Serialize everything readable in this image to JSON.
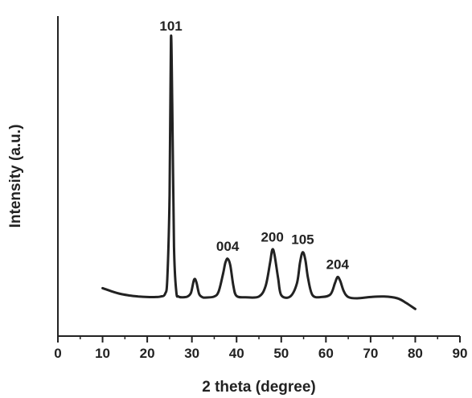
{
  "chart_data": {
    "type": "line",
    "title": "",
    "xlabel": "2 theta (degree)",
    "ylabel": "Intensity (a.u.)",
    "xlim": [
      0,
      90
    ],
    "ylim": [
      0,
      100
    ],
    "xticks": [
      0,
      10,
      20,
      30,
      40,
      50,
      60,
      70,
      80,
      90
    ],
    "grid": false,
    "legend": "none",
    "colors": {
      "line": "#222222",
      "axis": "#222222"
    },
    "series": [
      {
        "x": [
          10,
          12,
          14,
          16,
          18,
          20,
          22,
          23,
          24,
          24.5,
          25,
          25.3,
          25.6,
          26,
          26.5,
          27,
          28,
          29,
          29.8,
          30.5,
          31,
          31.6,
          32.3,
          33,
          35,
          36,
          37,
          37.5,
          38,
          38.6,
          39.3,
          40,
          42,
          45,
          46.5,
          47.5,
          48,
          48.5,
          49.3,
          50,
          52,
          53.5,
          54.2,
          54.8,
          55.4,
          56,
          57,
          59,
          61,
          62,
          62.6,
          63.2,
          64,
          65,
          67,
          70,
          73,
          76,
          78,
          80
        ],
        "y": [
          4.2,
          3.0,
          2.0,
          1.4,
          1.0,
          0.8,
          0.8,
          1.0,
          2.0,
          8.0,
          40.0,
          100.0,
          75.0,
          20.0,
          3.0,
          1.0,
          0.7,
          1.0,
          2.5,
          7.5,
          6.5,
          2.0,
          0.8,
          0.6,
          1.0,
          3.0,
          10.0,
          14.0,
          15.5,
          13.0,
          5.0,
          1.2,
          0.7,
          1.0,
          5.0,
          14.0,
          19.0,
          17.0,
          8.0,
          1.5,
          1.0,
          6.0,
          14.0,
          18.0,
          15.0,
          8.0,
          1.5,
          0.8,
          1.8,
          6.0,
          8.5,
          7.0,
          3.0,
          0.8,
          0.3,
          0.8,
          1.0,
          0.3,
          -1.5,
          -3.8
        ]
      }
    ],
    "annotations": [
      {
        "text": "101",
        "x": 25.3,
        "y": 100.0
      },
      {
        "text": "004",
        "x": 38.0,
        "y": 15.5
      },
      {
        "text": "200",
        "x": 48.0,
        "y": 19.0
      },
      {
        "text": "105",
        "x": 54.8,
        "y": 18.0
      },
      {
        "text": "204",
        "x": 62.6,
        "y": 8.5
      }
    ]
  }
}
